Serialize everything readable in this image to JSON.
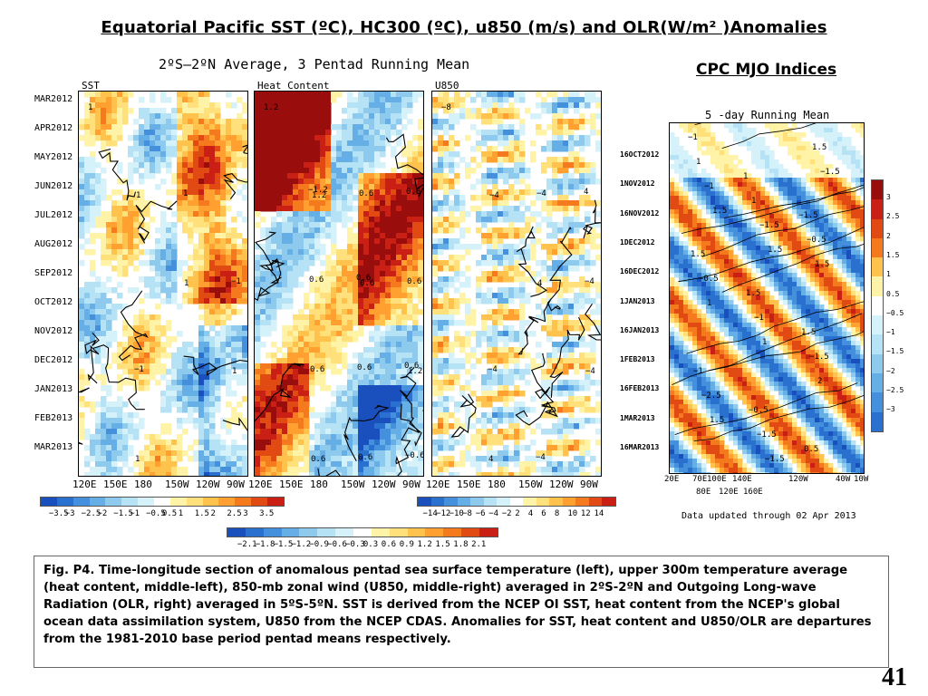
{
  "header": {
    "title": "Equatorial Pacific SST (ºC), HC300 (ºC), u850  (m/s) and OLR(W/m² )Anomalies",
    "cpc_title": "CPC MJO Indices"
  },
  "hovmoller": {
    "subtitle": "2ºS–2ºN Average, 3 Pentad Running Mean",
    "time_labels": [
      "MAR2012",
      "APR2012",
      "MAY2012",
      "JUN2012",
      "JUL2012",
      "AUG2012",
      "SEP2012",
      "OCT2012",
      "NOV2012",
      "DEC2012",
      "JAN2013",
      "FEB2013",
      "MAR2013"
    ],
    "lon_labels": [
      "120E",
      "150E",
      "180",
      "150W",
      "120W",
      "90W"
    ]
  },
  "chart_data": [
    {
      "type": "heatmap",
      "name": "SST",
      "x": [
        "120E",
        "150E",
        "180",
        "150W",
        "120W",
        "90W"
      ],
      "y": [
        "MAR2012",
        "APR2012",
        "MAY2012",
        "JUN2012",
        "JUL2012",
        "AUG2012",
        "SEP2012",
        "OCT2012",
        "NOV2012",
        "DEC2012",
        "JAN2013",
        "FEB2013",
        "MAR2013"
      ],
      "colorbar_ticks": [
        -3.5,
        -3,
        -2.5,
        -2,
        -1.5,
        -1,
        -0.5,
        0.5,
        1,
        1.5,
        2,
        2.5,
        3,
        3.5
      ],
      "colorbar_labels": [
        "−3.5",
        "−3",
        "−2.5",
        "−2",
        "−1.5",
        "−1",
        "−0.5",
        "0.5",
        "1",
        "1.5",
        "2",
        "2.5",
        "3",
        "3.5"
      ],
      "contour_annotations": [
        "1",
        "1",
        "1",
        "1",
        "1",
        "1",
        "−1",
        "−1"
      ]
    },
    {
      "type": "heatmap",
      "name": "Heat Content",
      "x": [
        "120E",
        "150E",
        "180",
        "150W",
        "120W",
        "90W"
      ],
      "y": [
        "MAR2012",
        "APR2012",
        "MAY2012",
        "JUN2012",
        "JUL2012",
        "AUG2012",
        "SEP2012",
        "OCT2012",
        "NOV2012",
        "DEC2012",
        "JAN2013",
        "FEB2013",
        "MAR2013"
      ],
      "colorbar_ticks": [
        -2.1,
        -1.8,
        -1.5,
        -1.2,
        -0.9,
        -0.6,
        -0.3,
        0.3,
        0.6,
        0.9,
        1.2,
        1.5,
        1.8,
        2.1
      ],
      "colorbar_labels": [
        "−2.1",
        "−1.8",
        "−1.5",
        "−1.2",
        "−0.9",
        "−0.6",
        "−0.3",
        "0.3",
        "0.6",
        "0.9",
        "1.2",
        "1.5",
        "1.8",
        "2.1"
      ],
      "contour_annotations": [
        "1.2",
        "1.2",
        "0.6",
        "1.2",
        "0.6",
        "0.6",
        "0.6",
        "0.6",
        "0.6",
        "0.6",
        "0.6",
        "0.6",
        "−0.6",
        "−1.2",
        "0.6",
        "0.6"
      ]
    },
    {
      "type": "heatmap",
      "name": "U850",
      "x": [
        "120E",
        "150E",
        "180",
        "150W",
        "120W",
        "90W"
      ],
      "y": [
        "MAR2012",
        "APR2012",
        "MAY2012",
        "JUN2012",
        "JUL2012",
        "AUG2012",
        "SEP2012",
        "OCT2012",
        "NOV2012",
        "DEC2012",
        "JAN2013",
        "FEB2013",
        "MAR2013"
      ],
      "colorbar_ticks": [
        -14,
        -12,
        -10,
        -8,
        -6,
        -4,
        -2,
        2,
        4,
        6,
        8,
        10,
        12,
        14
      ],
      "colorbar_labels": [
        "−14",
        "−12",
        "−10",
        "−8",
        "−6",
        "−4",
        "−2",
        "2",
        "4",
        "6",
        "8",
        "10",
        "12",
        "14"
      ],
      "contour_annotations": [
        "−8",
        "−4",
        "4",
        "−4",
        "4",
        "−4",
        "−4",
        "−4",
        "−4",
        "4"
      ]
    },
    {
      "type": "heatmap",
      "name": "5 -day Running Mean",
      "x": [
        "20E",
        "70E",
        "100E",
        "140E",
        "120W",
        "40W",
        "10W"
      ],
      "x_sublabels": [
        "80E",
        "120E",
        "160E"
      ],
      "y": [
        "16OCT2012",
        "1NOV2012",
        "16NOV2012",
        "1DEC2012",
        "16DEC2012",
        "1JAN2013",
        "16JAN2013",
        "1FEB2013",
        "16FEB2013",
        "1MAR2013",
        "16MAR2013"
      ],
      "colorbar_ticks": [
        3,
        2.5,
        2,
        1.5,
        1,
        0.5,
        -0.5,
        -1,
        -1.5,
        -2,
        -2.5,
        -3
      ],
      "colorbar_labels": [
        "3",
        "2.5",
        "2",
        "1.5",
        "1",
        "0.5",
        "−0.5",
        "−1",
        "−1.5",
        "−2",
        "−2.5",
        "−3"
      ],
      "contour_annotations": [
        "−1",
        "1",
        "−1.5",
        "1.5",
        "1.5",
        "1.5",
        "−1",
        "−0.5",
        "0.5",
        "1",
        "1",
        "−0.5",
        "−0.5",
        "−1",
        "−1.5",
        "−2.5",
        "−1.5",
        "1.5",
        "−1",
        "−1.5",
        "1.5",
        "1",
        "1",
        "2",
        "1.5",
        "−1.5",
        "−1.5",
        "1.5",
        "1.5"
      ]
    }
  ],
  "mjo": {
    "title": "5 -day Running Mean",
    "updated": "Data updated through 02 Apr 2013"
  },
  "caption": "Fig. P4. Time-longitude section of anomalous pentad sea surface temperature (left), upper 300m temperature average (heat content, middle-left), 850-mb zonal wind (U850, middle-right) averaged in 2ºS-2ºN and Outgoing Long-wave Radiation (OLR, right) averaged in 5ºS-5ºN. SST is derived from the NCEP OI SST, heat content from the NCEP's global ocean data assimilation system, U850 from the NCEP CDAS. Anomalies for SST, heat content and U850/OLR are departures from the 1981-2010 base period pentad means respectively.",
  "page_number": "41",
  "colors": {
    "warm_scale": [
      "#fff3a8",
      "#ffe07a",
      "#ffc24d",
      "#ffa030",
      "#f57a1e",
      "#e24a14",
      "#c91f14",
      "#9a0d0d"
    ],
    "cool_scale": [
      "#d5f2fa",
      "#b6e2f5",
      "#8ec9ee",
      "#66aee6",
      "#4490dc",
      "#2a70cf",
      "#1a50bd"
    ]
  }
}
